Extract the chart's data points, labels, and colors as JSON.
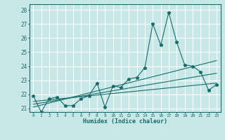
{
  "xlabel": "Humidex (Indice chaleur)",
  "bg_color": "#c8e8e8",
  "grid_color": "#ffffff",
  "line_color": "#1a6b6b",
  "xlim": [
    -0.5,
    23.5
  ],
  "ylim": [
    20.75,
    28.4
  ],
  "yticks": [
    21,
    22,
    23,
    24,
    25,
    26,
    27,
    28
  ],
  "xticks": [
    0,
    1,
    2,
    3,
    4,
    5,
    6,
    7,
    8,
    9,
    10,
    11,
    12,
    13,
    14,
    15,
    16,
    17,
    18,
    19,
    20,
    21,
    22,
    23
  ],
  "series1_x": [
    0,
    1,
    2,
    3,
    4,
    5,
    6,
    7,
    8,
    9,
    10,
    11,
    12,
    13,
    14,
    15,
    16,
    17,
    18,
    19,
    20,
    21,
    22,
    23
  ],
  "series1_y": [
    21.9,
    20.75,
    21.7,
    21.8,
    21.2,
    21.2,
    21.7,
    21.9,
    22.8,
    21.1,
    22.6,
    22.5,
    23.1,
    23.2,
    23.9,
    27.0,
    25.5,
    27.8,
    25.7,
    24.1,
    24.0,
    23.6,
    22.3,
    22.7
  ],
  "series2_x": [
    0,
    23
  ],
  "series2_y": [
    21.5,
    22.8
  ],
  "series3_x": [
    0,
    23
  ],
  "series3_y": [
    21.3,
    23.5
  ],
  "series4_x": [
    0,
    23
  ],
  "series4_y": [
    21.1,
    24.4
  ]
}
